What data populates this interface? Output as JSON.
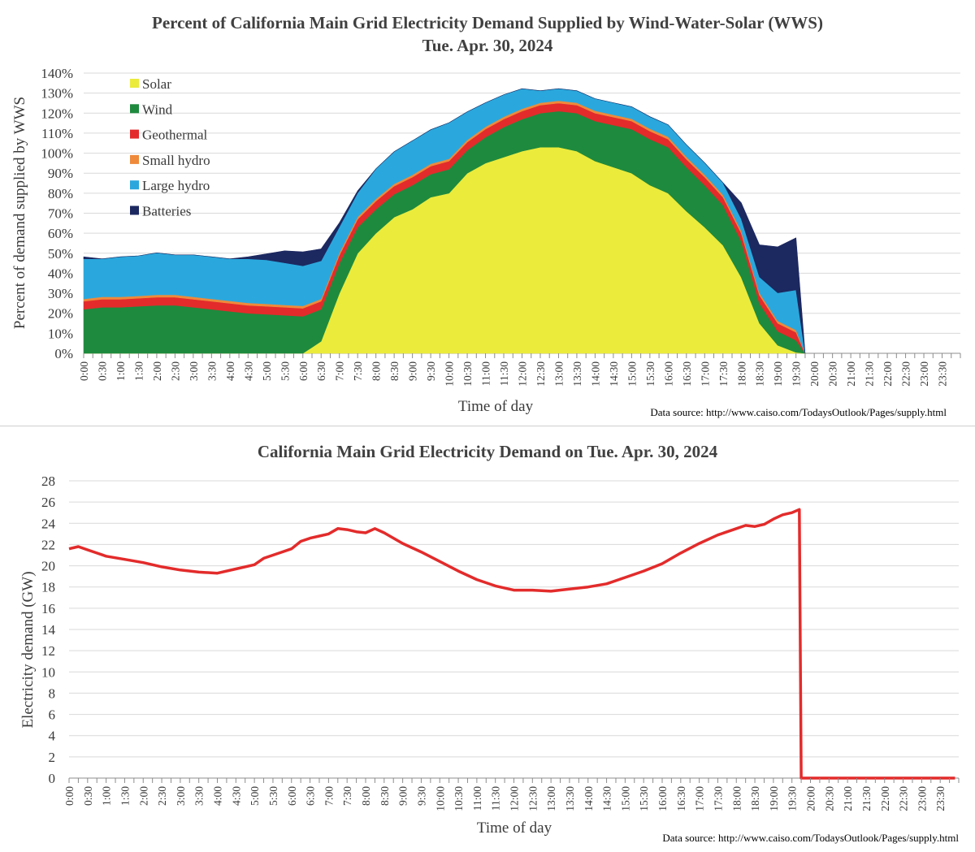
{
  "chart_data": [
    {
      "type": "area",
      "stacked": true,
      "title": "Percent of California Main Grid Electricity Demand Supplied by Wind-Water-Solar (WWS)",
      "subtitle": "Tue. Apr. 30, 2024",
      "xlabel": "Time of day",
      "ylabel": "Percent of demand supplied by WWS",
      "ylim": [
        0,
        140
      ],
      "yticks": [
        "0%",
        "10%",
        "20%",
        "30%",
        "40%",
        "50%",
        "60%",
        "70%",
        "80%",
        "90%",
        "100%",
        "110%",
        "120%",
        "130%",
        "140%"
      ],
      "xticks": [
        "0:00",
        "0:30",
        "1:00",
        "1:30",
        "2:00",
        "2:30",
        "3:00",
        "3:30",
        "4:00",
        "4:30",
        "5:00",
        "5:30",
        "6:00",
        "6:30",
        "7:00",
        "7:30",
        "8:00",
        "8:30",
        "9:00",
        "9:30",
        "10:00",
        "10:30",
        "11:00",
        "11:30",
        "12:00",
        "12:30",
        "13:00",
        "13:30",
        "14:00",
        "14:30",
        "15:00",
        "15:30",
        "16:00",
        "16:30",
        "17:00",
        "17:30",
        "18:00",
        "18:30",
        "19:00",
        "19:30",
        "20:00",
        "20:30",
        "21:00",
        "21:30",
        "22:00",
        "22:30",
        "23:00",
        "23:30"
      ],
      "x_hours": [
        0,
        0.5,
        1,
        1.5,
        2,
        2.5,
        3,
        3.5,
        4,
        4.5,
        5,
        5.5,
        6,
        6.5,
        7,
        7.5,
        8,
        8.5,
        9,
        9.5,
        10,
        10.5,
        11,
        11.5,
        12,
        12.5,
        13,
        13.5,
        14,
        14.5,
        15,
        15.5,
        16,
        16.5,
        17,
        17.5,
        18,
        18.5,
        19,
        19.5,
        19.75
      ],
      "series": [
        {
          "name": "Solar",
          "color": "#EBEB3C",
          "values": [
            0,
            0,
            0,
            0,
            0,
            0,
            0,
            0,
            0,
            0,
            0,
            0,
            0,
            6,
            30,
            50,
            60,
            68,
            72,
            78,
            80,
            90,
            95,
            98,
            101,
            103,
            103,
            101,
            96,
            93,
            90,
            84,
            80,
            71,
            63,
            54,
            38,
            15,
            4,
            0.5,
            0
          ]
        },
        {
          "name": "Wind",
          "color": "#1E8A3E",
          "values": [
            22,
            23,
            23,
            23.5,
            24,
            24,
            23,
            22,
            21,
            20,
            19.5,
            19,
            18.5,
            16,
            15,
            13,
            12,
            11.5,
            12,
            11.5,
            12,
            11.5,
            13,
            15,
            16,
            17,
            18,
            19,
            20,
            21,
            22,
            23,
            23,
            22,
            21,
            20,
            18,
            10,
            7,
            6,
            0
          ]
        },
        {
          "name": "Geothermal",
          "color": "#E32B2B",
          "values": [
            4,
            4,
            4,
            4,
            4,
            4,
            4,
            4,
            4,
            4,
            4,
            4,
            4,
            4,
            4,
            4,
            4,
            4,
            4,
            4,
            4,
            4,
            4,
            4,
            4,
            4,
            4,
            4,
            4,
            4,
            4,
            4,
            4,
            4,
            4,
            4,
            4,
            4,
            4,
            4,
            0
          ]
        },
        {
          "name": "Small hydro",
          "color": "#EE8A3A",
          "values": [
            1.2,
            1.2,
            1.2,
            1.2,
            1.2,
            1.2,
            1.2,
            1.2,
            1.2,
            1.2,
            1.2,
            1.2,
            1.2,
            1.2,
            1.2,
            1.2,
            1.2,
            1.2,
            1.2,
            1.2,
            1.2,
            1.2,
            1.2,
            1.2,
            1.2,
            1.2,
            1.2,
            1.2,
            1.2,
            1.2,
            1.2,
            1.2,
            1.2,
            1.2,
            1.2,
            1.2,
            1.2,
            1.2,
            1.2,
            1.2,
            0
          ]
        },
        {
          "name": "Large hydro",
          "color": "#2AA8DD",
          "values": [
            20,
            19,
            20,
            20,
            21,
            20,
            21,
            21,
            21,
            22,
            22,
            21,
            20,
            19,
            13,
            12,
            15,
            16,
            17,
            17,
            18,
            14,
            12,
            11,
            10,
            6,
            6,
            6,
            6,
            6,
            6,
            6,
            6,
            6,
            6,
            6,
            6,
            8,
            14,
            20,
            0
          ]
        },
        {
          "name": "Batteries",
          "color": "#1C2860",
          "values": [
            1,
            0,
            0,
            0,
            0,
            0,
            0,
            0,
            0,
            1,
            3,
            6,
            7,
            6,
            2,
            1,
            0,
            0,
            0,
            0,
            0,
            0,
            0,
            0,
            0,
            0,
            0,
            0,
            0,
            0,
            0,
            0,
            0,
            0,
            0,
            0,
            8,
            16,
            23,
            26,
            0
          ]
        }
      ],
      "source": "Data source: http://www.caiso.com/TodaysOutlook/Pages/supply.html"
    },
    {
      "type": "line",
      "title": "California Main Grid Electricity Demand on Tue. Apr. 30, 2024",
      "xlabel": "Time of day",
      "ylabel": "Electricity demand (GW)",
      "ylim": [
        0,
        28
      ],
      "yticks": [
        "0",
        "2",
        "4",
        "6",
        "8",
        "10",
        "12",
        "14",
        "16",
        "18",
        "20",
        "22",
        "24",
        "26",
        "28"
      ],
      "xticks": [
        "0:00",
        "0:30",
        "1:00",
        "1:30",
        "2:00",
        "2:30",
        "3:00",
        "3:30",
        "4:00",
        "4:30",
        "5:00",
        "5:30",
        "6:00",
        "6:30",
        "7:00",
        "7:30",
        "8:00",
        "8:30",
        "9:00",
        "9:30",
        "10:00",
        "10:30",
        "11:00",
        "11:30",
        "12:00",
        "12:30",
        "13:00",
        "13:30",
        "14:00",
        "14:30",
        "15:00",
        "15:30",
        "16:00",
        "16:30",
        "17:00",
        "17:30",
        "18:00",
        "18:30",
        "19:00",
        "19:30",
        "20:00",
        "20:30",
        "21:00",
        "21:30",
        "22:00",
        "22:30",
        "23:00",
        "23:30"
      ],
      "series": [
        {
          "name": "Demand",
          "color": "#E32B2B",
          "x": [
            0,
            0.25,
            0.5,
            0.75,
            1,
            1.5,
            2,
            2.5,
            3,
            3.5,
            4,
            4.5,
            5,
            5.25,
            5.5,
            5.75,
            6,
            6.25,
            6.5,
            6.75,
            7,
            7.25,
            7.5,
            7.75,
            8,
            8.25,
            8.5,
            9,
            9.5,
            10,
            10.5,
            11,
            11.5,
            12,
            12.5,
            13,
            13.5,
            14,
            14.5,
            15,
            15.5,
            16,
            16.5,
            17,
            17.5,
            18,
            18.25,
            18.5,
            18.75,
            19,
            19.25,
            19.5,
            19.7,
            19.75,
            20,
            21,
            22,
            23,
            23.9
          ],
          "values": [
            21.6,
            21.8,
            21.5,
            21.2,
            20.9,
            20.6,
            20.3,
            19.9,
            19.6,
            19.4,
            19.3,
            19.7,
            20.1,
            20.7,
            21.0,
            21.3,
            21.6,
            22.3,
            22.6,
            22.8,
            23.0,
            23.5,
            23.4,
            23.2,
            23.1,
            23.5,
            23.1,
            22.1,
            21.3,
            20.4,
            19.5,
            18.7,
            18.1,
            17.7,
            17.7,
            17.6,
            17.8,
            18.0,
            18.3,
            18.9,
            19.5,
            20.2,
            21.2,
            22.1,
            22.9,
            23.5,
            23.8,
            23.7,
            23.9,
            24.4,
            24.8,
            25.0,
            25.3,
            0,
            0,
            0,
            0,
            0,
            0
          ]
        }
      ],
      "source": "Data source: http://www.caiso.com/TodaysOutlook/Pages/supply.html"
    }
  ]
}
